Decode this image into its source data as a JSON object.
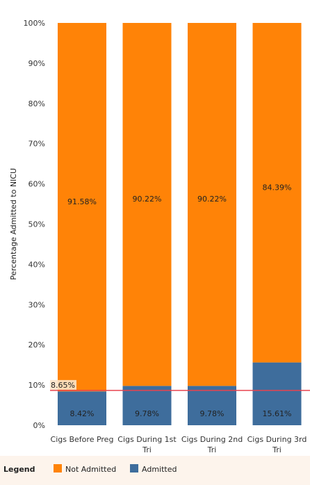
{
  "chart_data": {
    "type": "bar",
    "stacked": true,
    "categories": [
      [
        "Cigs Before Preg"
      ],
      [
        "Cigs During 1st",
        "Tri"
      ],
      [
        "Cigs During 2nd",
        "Tri"
      ],
      [
        "Cigs During 3rd",
        "Tri"
      ]
    ],
    "series": [
      {
        "name": "Admitted",
        "color": "#3e6d9c",
        "values": [
          8.42,
          9.78,
          9.78,
          15.61
        ],
        "labels": [
          "8.42%",
          "9.78%",
          "9.78%",
          "15.61%"
        ]
      },
      {
        "name": "Not Admitted",
        "color": "#ff8307",
        "values": [
          91.58,
          90.22,
          90.22,
          84.39
        ],
        "labels": [
          "91.58%",
          "90.22%",
          "90.22%",
          "84.39%"
        ]
      }
    ],
    "ylabel": "Percentage Admitted to NICU",
    "ylim": [
      0,
      100
    ],
    "yticks": [
      0,
      10,
      20,
      30,
      40,
      50,
      60,
      70,
      80,
      90,
      100
    ],
    "ytick_labels": [
      "0%",
      "10%",
      "20%",
      "30%",
      "40%",
      "50%",
      "60%",
      "70%",
      "80%",
      "90%",
      "100%"
    ],
    "reference_line": {
      "value": 8.65,
      "label": "8.65%",
      "color": "#e8434f"
    },
    "grid": false,
    "legend": {
      "title": "Legend",
      "placement": "bottom-left",
      "items": [
        "Not Admitted",
        "Admitted"
      ]
    }
  }
}
